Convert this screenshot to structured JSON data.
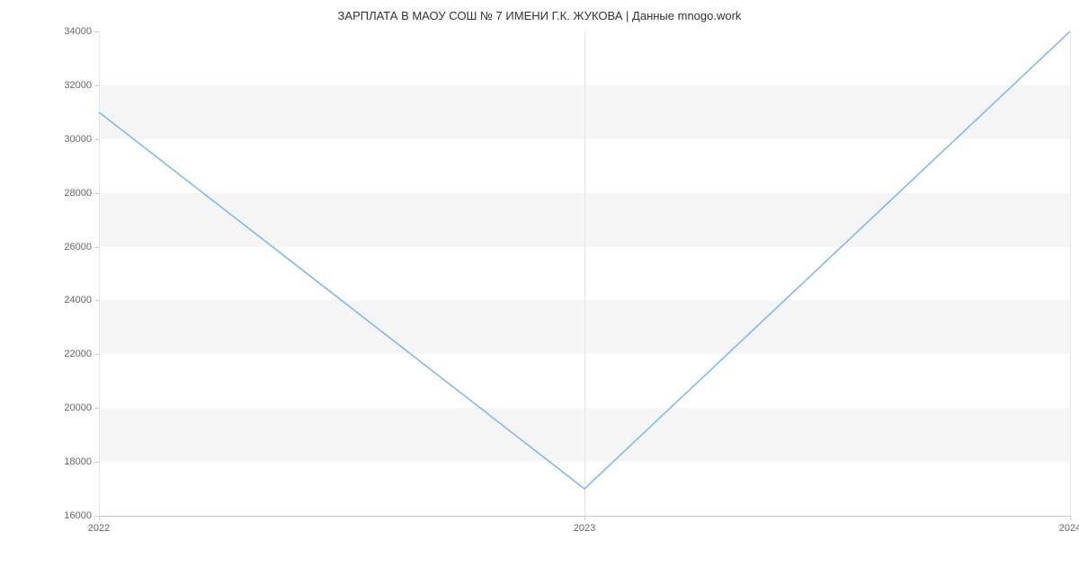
{
  "chart": {
    "type": "line",
    "title": "ЗАРПЛАТА В МАОУ СОШ № 7 ИМЕНИ Г.К. ЖУКОВА | Данные mnogo.work",
    "title_fontsize": 13,
    "title_color": "#333333",
    "background_color": "#ffffff",
    "band_color": "#f5f5f5",
    "vgrid_color": "#e6e6e6",
    "axis_line_color": "#cccccc",
    "tick_label_color": "#666666",
    "tick_label_fontsize": 11,
    "y": {
      "min": 16000,
      "max": 34000,
      "ticks": [
        16000,
        18000,
        20000,
        22000,
        24000,
        26000,
        28000,
        30000,
        32000,
        34000
      ]
    },
    "x": {
      "min": 2022,
      "max": 2024,
      "ticks": [
        2022,
        2023,
        2024
      ]
    },
    "series": {
      "color": "#7cb5ec",
      "line_width": 1.5,
      "points": [
        {
          "x": 2022,
          "y": 31000
        },
        {
          "x": 2023,
          "y": 17000
        },
        {
          "x": 2024,
          "y": 34000
        }
      ]
    }
  }
}
